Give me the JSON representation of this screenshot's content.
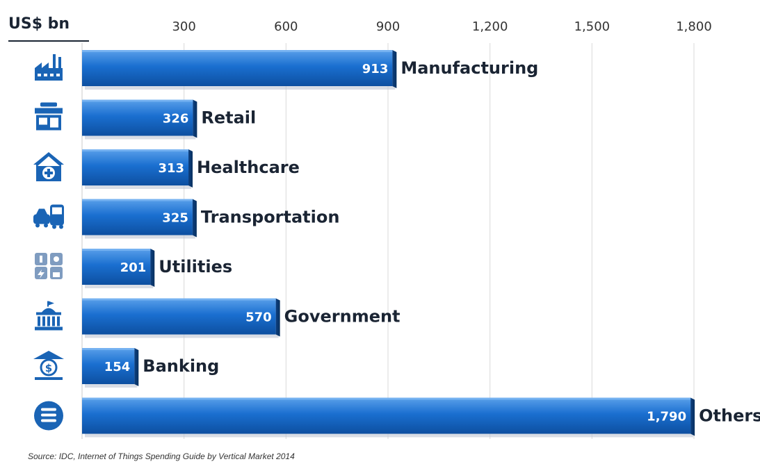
{
  "unit_label": "US$ bn",
  "source": "Source: IDC, Internet of Things Spending Guide by Vertical Market 2014",
  "colors": {
    "bar": "#1565c0",
    "bar_light": "#4a90e0",
    "bar_shadow": "#0b3a7a",
    "icon": "#1a64b5",
    "label": "#1a2433",
    "grid": "#d9d9d9"
  },
  "chart_data": {
    "type": "bar",
    "orientation": "horizontal",
    "categories": [
      "Manufacturing",
      "Retail",
      "Healthcare",
      "Transportation",
      "Utilities",
      "Government",
      "Banking",
      "Others"
    ],
    "values": [
      913,
      326,
      313,
      325,
      201,
      570,
      154,
      1790
    ],
    "value_labels": [
      "913",
      "326",
      "313",
      "325",
      "201",
      "570",
      "154",
      "1,790"
    ],
    "icons": [
      "factory-icon",
      "store-icon",
      "hospital-icon",
      "car-bus-icon",
      "utilities-icon",
      "government-building-icon",
      "bank-icon",
      "menu-circle-icon"
    ],
    "x_ticks": [
      300,
      600,
      900,
      1200,
      1500,
      1800
    ],
    "x_tick_labels": [
      "300",
      "600",
      "900",
      "1,200",
      "1,500",
      "1,800"
    ],
    "xlim": [
      0,
      1800
    ],
    "grid": true,
    "xlabel": "US$ bn",
    "ylabel": ""
  }
}
